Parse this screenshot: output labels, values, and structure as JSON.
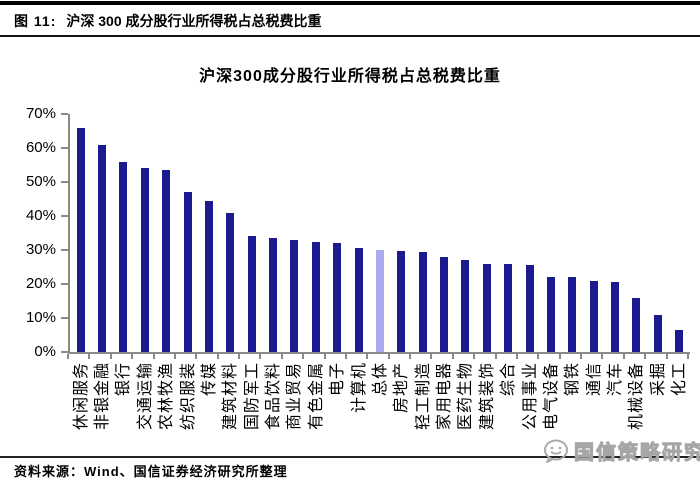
{
  "figure_header": {
    "label": "图 11:",
    "title": "沪深 300 成分股行业所得税占总税费比重"
  },
  "chart_data": {
    "type": "bar",
    "title": "沪深300成分股行业所得税占总税费比重",
    "xlabel": "",
    "ylabel": "",
    "categories": [
      "休闲服务",
      "非银金融",
      "银行",
      "交通运输",
      "农林牧渔",
      "纺织服装",
      "传媒",
      "建筑材料",
      "国防军工",
      "食品饮料",
      "商业贸易",
      "有色金属",
      "电子",
      "计算机",
      "总体",
      "房地产",
      "轻工制造",
      "家用电器",
      "医药生物",
      "建筑装饰",
      "综合",
      "公用事业",
      "电气设备",
      "钢铁",
      "通信",
      "汽车",
      "机械设备",
      "采掘",
      "化工"
    ],
    "values": [
      66,
      61,
      56,
      54,
      53.5,
      47,
      44.5,
      41,
      34,
      33.5,
      33,
      32.5,
      32,
      30.5,
      30,
      29.8,
      29.5,
      28,
      27,
      26,
      26,
      25.5,
      22,
      22,
      21,
      20.5,
      16,
      11,
      6.5
    ],
    "unit": "%",
    "ylim": [
      0,
      70
    ],
    "y_ticks": [
      "70%",
      "60%",
      "50%",
      "40%",
      "30%",
      "20%",
      "10%",
      "0%"
    ],
    "grid": false,
    "legend": "none",
    "highlight_category": "总体",
    "bar_color": "#1b1b8f",
    "highlight_color": "#a9abec",
    "axis_color": "#8a8a8a"
  },
  "footer": {
    "source": "资料来源：Wind、国信证券经济研究所整理"
  },
  "watermark": {
    "text": "国信策略研究",
    "icon": "wechat-chat-face"
  }
}
